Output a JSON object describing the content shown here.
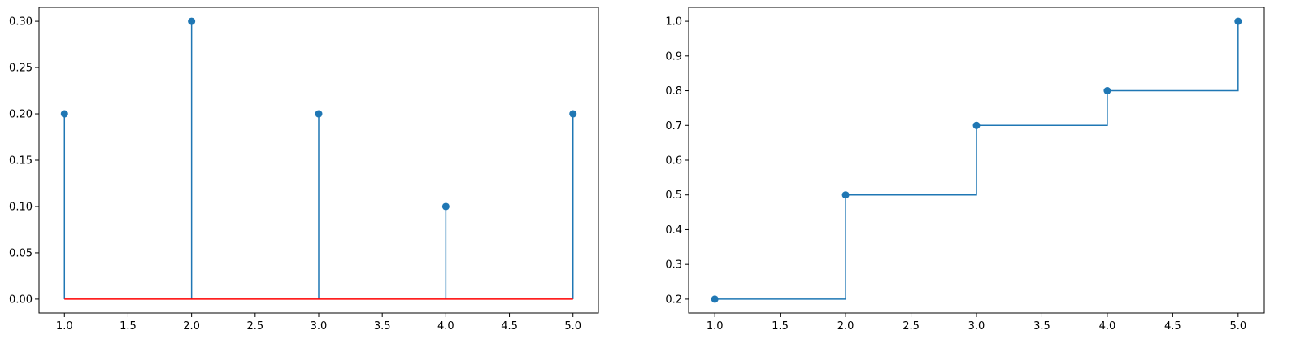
{
  "chart_data": [
    {
      "type": "stem",
      "x": [
        1,
        2,
        3,
        4,
        5
      ],
      "values": [
        0.2,
        0.3,
        0.2,
        0.1,
        0.2
      ],
      "baseline": 0,
      "xlim": [
        0.8,
        5.2
      ],
      "ylim": [
        -0.015,
        0.315
      ],
      "xticks": [
        1.0,
        1.5,
        2.0,
        2.5,
        3.0,
        3.5,
        4.0,
        4.5,
        5.0
      ],
      "yticks": [
        0.0,
        0.05,
        0.1,
        0.15,
        0.2,
        0.25,
        0.3
      ],
      "xtick_labels": [
        "1.0",
        "1.5",
        "2.0",
        "2.5",
        "3.0",
        "3.5",
        "4.0",
        "4.5",
        "5.0"
      ],
      "ytick_labels": [
        "0.00",
        "0.05",
        "0.10",
        "0.15",
        "0.20",
        "0.25",
        "0.30"
      ],
      "title": "",
      "xlabel": "",
      "ylabel": "",
      "colors": {
        "stem": "#1f77b4",
        "marker": "#1f77b4",
        "baseline": "#ff0000"
      },
      "grid": false
    },
    {
      "type": "step",
      "x": [
        1,
        2,
        3,
        4,
        5
      ],
      "values": [
        0.2,
        0.5,
        0.7,
        0.8,
        1.0
      ],
      "step_where": "post",
      "xlim": [
        0.8,
        5.2
      ],
      "ylim": [
        0.16,
        1.04
      ],
      "xticks": [
        1.0,
        1.5,
        2.0,
        2.5,
        3.0,
        3.5,
        4.0,
        4.5,
        5.0
      ],
      "yticks": [
        0.2,
        0.3,
        0.4,
        0.5,
        0.6,
        0.7,
        0.8,
        0.9,
        1.0
      ],
      "xtick_labels": [
        "1.0",
        "1.5",
        "2.0",
        "2.5",
        "3.0",
        "3.5",
        "4.0",
        "4.5",
        "5.0"
      ],
      "ytick_labels": [
        "0.2",
        "0.3",
        "0.4",
        "0.5",
        "0.6",
        "0.7",
        "0.8",
        "0.9",
        "1.0"
      ],
      "title": "",
      "xlabel": "",
      "ylabel": "",
      "colors": {
        "line": "#1f77b4",
        "marker": "#1f77b4"
      },
      "grid": false
    }
  ]
}
